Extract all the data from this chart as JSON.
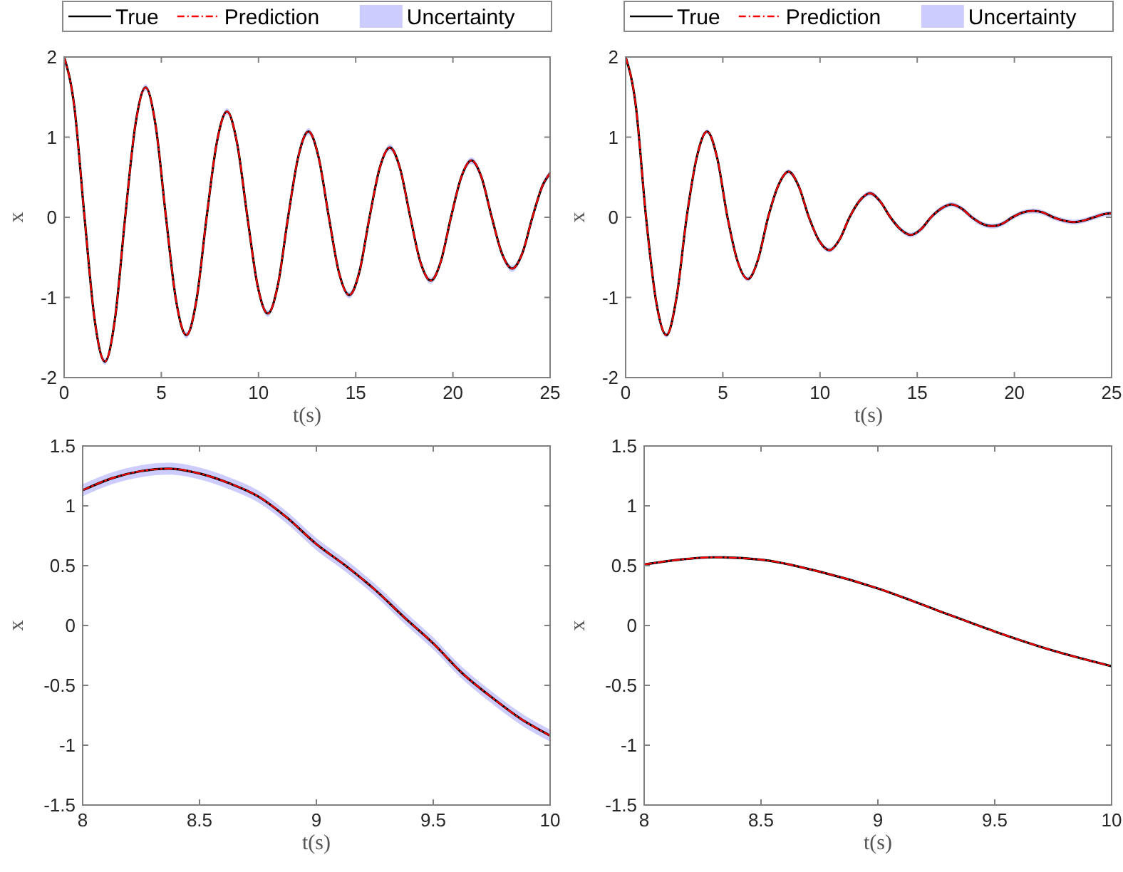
{
  "chart_data": [
    {
      "type": "line",
      "xlabel": "t(s)",
      "ylabel": "x",
      "legend": "top",
      "xlim": [
        0,
        25
      ],
      "ylim": [
        -2,
        2
      ],
      "xticks": [
        0,
        5,
        10,
        15,
        20,
        25
      ],
      "yticks": [
        -2,
        -1,
        0,
        1,
        2
      ],
      "x": [
        0,
        0.52,
        1.05,
        1.57,
        2.1,
        2.62,
        3.14,
        3.67,
        4.19,
        4.71,
        5.24,
        5.76,
        6.29,
        6.81,
        7.33,
        7.86,
        8.38,
        8.9,
        9.43,
        9.95,
        10.48,
        11,
        11.52,
        12.05,
        12.57,
        13.09,
        13.62,
        14.14,
        14.67,
        15.19,
        15.71,
        16.24,
        16.76,
        17.28,
        17.81,
        18.33,
        18.86,
        19.38,
        19.9,
        20.43,
        20.95,
        21.47,
        22,
        22.52,
        23.05,
        23.57,
        24.09,
        24.62,
        25
      ],
      "series": [
        {
          "name": "True",
          "type": "line",
          "color": "#000000",
          "line_style": "solid",
          "values": [
            2,
            1.39,
            0,
            -1.28,
            -1.8,
            -1.26,
            0,
            1.16,
            1.62,
            1.14,
            0,
            -1.04,
            -1.47,
            -1.03,
            0,
            0.94,
            1.32,
            0.92,
            0,
            -0.85,
            -1.2,
            -0.84,
            0,
            0.76,
            1.07,
            0.75,
            0,
            -0.69,
            -0.97,
            -0.68,
            0,
            0.62,
            0.87,
            0.61,
            0,
            -0.56,
            -0.79,
            -0.55,
            0,
            0.5,
            0.71,
            0.5,
            0,
            -0.45,
            -0.64,
            -0.45,
            0,
            0.4,
            0.55
          ]
        },
        {
          "name": "Prediction",
          "type": "line",
          "color": "#ff0000",
          "line_style": "dashed",
          "values": [
            2,
            1.39,
            0,
            -1.28,
            -1.8,
            -1.26,
            0,
            1.16,
            1.62,
            1.14,
            0,
            -1.04,
            -1.47,
            -1.03,
            0,
            0.94,
            1.32,
            0.92,
            0,
            -0.85,
            -1.2,
            -0.84,
            0,
            0.76,
            1.07,
            0.75,
            0,
            -0.69,
            -0.97,
            -0.68,
            0,
            0.62,
            0.87,
            0.61,
            0,
            -0.56,
            -0.79,
            -0.55,
            0,
            0.5,
            0.71,
            0.5,
            0,
            -0.45,
            -0.64,
            -0.45,
            0,
            0.4,
            0.55
          ]
        },
        {
          "name": "Uncertainty",
          "type": "area",
          "color": "#ccccff",
          "values": [
            null,
            null,
            null,
            null,
            null,
            null,
            null,
            null,
            null,
            null,
            null,
            null,
            null,
            null,
            null,
            null,
            null,
            null,
            null,
            null,
            null,
            null,
            null,
            null,
            null,
            null,
            null,
            null,
            null,
            null,
            null,
            null,
            null,
            null,
            null,
            null,
            null,
            null,
            null,
            null,
            null,
            null,
            null,
            null,
            null,
            null,
            null,
            null,
            null
          ],
          "lower": [
            2,
            1.37,
            -0.02,
            -1.31,
            -1.84,
            -1.3,
            -0.04,
            1.12,
            1.58,
            1.1,
            -0.04,
            -1.08,
            -1.51,
            -1.07,
            -0.04,
            0.9,
            1.28,
            0.88,
            -0.04,
            -0.89,
            -1.24,
            -0.88,
            -0.04,
            0.72,
            1.03,
            0.71,
            -0.04,
            -0.73,
            -1.01,
            -0.72,
            -0.04,
            0.58,
            0.83,
            0.57,
            -0.04,
            -0.6,
            -0.83,
            -0.59,
            -0.04,
            0.46,
            0.67,
            0.46,
            -0.04,
            -0.49,
            -0.68,
            -0.49,
            -0.04,
            0.36,
            0.51
          ],
          "upper": [
            2,
            1.41,
            0.02,
            -1.25,
            -1.76,
            -1.22,
            0.04,
            1.2,
            1.66,
            1.18,
            0.04,
            -1,
            -1.43,
            -0.99,
            0.04,
            0.98,
            1.36,
            0.96,
            0.04,
            -0.81,
            -1.16,
            -0.8,
            0.04,
            0.8,
            1.11,
            0.79,
            0.04,
            -0.65,
            -0.93,
            -0.64,
            0.04,
            0.66,
            0.91,
            0.65,
            0.04,
            -0.52,
            -0.75,
            -0.51,
            0.04,
            0.54,
            0.75,
            0.54,
            0.04,
            -0.41,
            -0.6,
            -0.41,
            0.04,
            0.44,
            0.59
          ]
        }
      ]
    },
    {
      "type": "line",
      "xlabel": "t(s)",
      "ylabel": "x",
      "legend": "top",
      "xlim": [
        0,
        25
      ],
      "ylim": [
        -2,
        2
      ],
      "xticks": [
        0,
        5,
        10,
        15,
        20,
        25
      ],
      "yticks": [
        -2,
        -1,
        0,
        1,
        2
      ],
      "x": [
        0,
        0.52,
        1.05,
        1.57,
        2.1,
        2.62,
        3.14,
        3.67,
        4.19,
        4.71,
        5.24,
        5.76,
        6.29,
        6.81,
        7.33,
        7.86,
        8.38,
        8.9,
        9.43,
        9.95,
        10.48,
        11,
        11.52,
        12.05,
        12.57,
        13.09,
        13.62,
        14.14,
        14.67,
        15.19,
        15.71,
        16.24,
        16.76,
        17.28,
        17.81,
        18.33,
        18.86,
        19.38,
        19.9,
        20.43,
        20.95,
        21.47,
        22,
        22.52,
        23.05,
        23.57,
        24.09,
        24.62,
        25
      ],
      "series": [
        {
          "name": "True",
          "type": "line",
          "color": "#000000",
          "line_style": "solid",
          "values": [
            2,
            1.4,
            0,
            -1.05,
            -1.47,
            -1,
            0,
            0.76,
            1.07,
            0.74,
            0,
            -0.55,
            -0.77,
            -0.53,
            0,
            0.4,
            0.57,
            0.39,
            0,
            -0.29,
            -0.41,
            -0.28,
            0,
            0.21,
            0.3,
            0.2,
            0,
            -0.15,
            -0.22,
            -0.15,
            0,
            0.11,
            0.16,
            0.11,
            0,
            -0.08,
            -0.11,
            -0.08,
            0,
            0.06,
            0.08,
            0.06,
            0,
            -0.04,
            -0.06,
            -0.04,
            0,
            0.04,
            0.05
          ]
        },
        {
          "name": "Prediction",
          "type": "line",
          "color": "#ff0000",
          "line_style": "dashed",
          "values": [
            2,
            1.4,
            0,
            -1.05,
            -1.47,
            -1,
            0,
            0.76,
            1.07,
            0.74,
            0,
            -0.55,
            -0.77,
            -0.53,
            0,
            0.4,
            0.57,
            0.39,
            0,
            -0.29,
            -0.41,
            -0.28,
            0,
            0.21,
            0.3,
            0.2,
            0,
            -0.15,
            -0.22,
            -0.15,
            0,
            0.11,
            0.16,
            0.11,
            0,
            -0.08,
            -0.11,
            -0.08,
            0,
            0.06,
            0.08,
            0.06,
            0,
            -0.04,
            -0.06,
            -0.04,
            0,
            0.04,
            0.05
          ]
        },
        {
          "name": "Uncertainty",
          "type": "area",
          "color": "#ccccff",
          "values": [
            null,
            null,
            null,
            null,
            null,
            null,
            null,
            null,
            null,
            null,
            null,
            null,
            null,
            null,
            null,
            null,
            null,
            null,
            null,
            null,
            null,
            null,
            null,
            null,
            null,
            null,
            null,
            null,
            null,
            null,
            null,
            null,
            null,
            null,
            null,
            null,
            null,
            null,
            null,
            null,
            null,
            null,
            null,
            null,
            null,
            null,
            null,
            null,
            null
          ],
          "lower": [
            1.97,
            1.37,
            -0.03,
            -1.08,
            -1.5,
            -1.03,
            -0.03,
            0.73,
            1.04,
            0.71,
            -0.03,
            -0.58,
            -0.8,
            -0.56,
            -0.03,
            0.37,
            0.54,
            0.36,
            -0.03,
            -0.32,
            -0.44,
            -0.31,
            -0.03,
            0.18,
            0.27,
            0.17,
            -0.03,
            -0.18,
            -0.25,
            -0.18,
            -0.03,
            0.08,
            0.13,
            0.08,
            -0.03,
            -0.11,
            -0.14,
            -0.11,
            -0.03,
            0.03,
            0.05,
            0.03,
            -0.03,
            -0.07,
            -0.09,
            -0.07,
            -0.03,
            0.01,
            0.02
          ],
          "upper": [
            2,
            1.43,
            0.03,
            -1.02,
            -1.44,
            -0.97,
            0.03,
            0.79,
            1.1,
            0.77,
            0.03,
            -0.52,
            -0.74,
            -0.5,
            0.03,
            0.43,
            0.6,
            0.42,
            0.03,
            -0.26,
            -0.38,
            -0.25,
            0.03,
            0.24,
            0.33,
            0.23,
            0.03,
            -0.12,
            -0.19,
            -0.12,
            0.03,
            0.14,
            0.19,
            0.14,
            0.03,
            -0.05,
            -0.08,
            -0.05,
            0.03,
            0.09,
            0.11,
            0.09,
            0.03,
            -0.01,
            -0.03,
            -0.01,
            0.03,
            0.07,
            0.08
          ]
        }
      ]
    },
    {
      "type": "line",
      "xlabel": "t(s)",
      "ylabel": "x",
      "xlim": [
        8,
        10
      ],
      "ylim": [
        -1.5,
        1.5
      ],
      "xticks": [
        8,
        8.5,
        9,
        9.5,
        10
      ],
      "yticks": [
        -1.5,
        -1,
        -0.5,
        0,
        0.5,
        1,
        1.5
      ],
      "x": [
        8,
        8.125,
        8.25,
        8.37,
        8.5,
        8.625,
        8.75,
        8.875,
        9,
        9.125,
        9.25,
        9.375,
        9.5,
        9.625,
        9.75,
        9.875,
        10
      ],
      "series": [
        {
          "type": "line",
          "color": "#000000",
          "line_style": "solid",
          "values": [
            1.13,
            1.23,
            1.29,
            1.31,
            1.27,
            1.19,
            1.08,
            0.9,
            0.68,
            0.5,
            0.3,
            0.07,
            -0.15,
            -0.4,
            -0.6,
            -0.78,
            -0.92
          ]
        },
        {
          "type": "line",
          "color": "#ff0000",
          "line_style": "dashed",
          "values": [
            1.13,
            1.23,
            1.29,
            1.31,
            1.27,
            1.19,
            1.08,
            0.9,
            0.68,
            0.5,
            0.3,
            0.07,
            -0.15,
            -0.4,
            -0.6,
            -0.78,
            -0.92
          ]
        },
        {
          "type": "area",
          "color": "#ccccff",
          "values": [
            null,
            null,
            null,
            null,
            null,
            null,
            null,
            null,
            null,
            null,
            null,
            null,
            null,
            null,
            null,
            null,
            null
          ],
          "lower": [
            1.08,
            1.18,
            1.24,
            1.26,
            1.22,
            1.14,
            1.03,
            0.85,
            0.63,
            0.45,
            0.25,
            0.02,
            -0.2,
            -0.45,
            -0.65,
            -0.83,
            -0.97
          ],
          "upper": [
            1.18,
            1.28,
            1.34,
            1.36,
            1.32,
            1.24,
            1.13,
            0.95,
            0.73,
            0.55,
            0.35,
            0.12,
            -0.1,
            -0.35,
            -0.55,
            -0.73,
            -0.87
          ]
        }
      ]
    },
    {
      "type": "line",
      "xlabel": "t(s)",
      "ylabel": "x",
      "xlim": [
        8,
        10
      ],
      "ylim": [
        -1.5,
        1.5
      ],
      "xticks": [
        8,
        8.5,
        9,
        9.5,
        10
      ],
      "yticks": [
        -1.5,
        -1,
        -0.5,
        0,
        0.5,
        1,
        1.5
      ],
      "x": [
        8,
        8.15,
        8.3,
        8.5,
        8.75,
        9,
        9.25,
        9.5,
        9.75,
        10
      ],
      "series": [
        {
          "type": "line",
          "color": "#000000",
          "line_style": "solid",
          "values": [
            0.51,
            0.55,
            0.57,
            0.55,
            0.45,
            0.31,
            0.13,
            -0.05,
            -0.21,
            -0.34
          ]
        },
        {
          "type": "line",
          "color": "#ff0000",
          "line_style": "dashed",
          "values": [
            0.51,
            0.55,
            0.57,
            0.55,
            0.45,
            0.31,
            0.13,
            -0.05,
            -0.21,
            -0.34
          ]
        },
        {
          "type": "area",
          "color": "#ccccff",
          "values": [
            null,
            null,
            null,
            null,
            null,
            null,
            null,
            null,
            null,
            null
          ],
          "lower": [
            0.5,
            0.54,
            0.56,
            0.54,
            0.44,
            0.3,
            0.12,
            -0.06,
            -0.22,
            -0.35
          ],
          "upper": [
            0.52,
            0.56,
            0.58,
            0.56,
            0.46,
            0.32,
            0.14,
            -0.04,
            -0.2,
            -0.33
          ]
        }
      ]
    }
  ]
}
